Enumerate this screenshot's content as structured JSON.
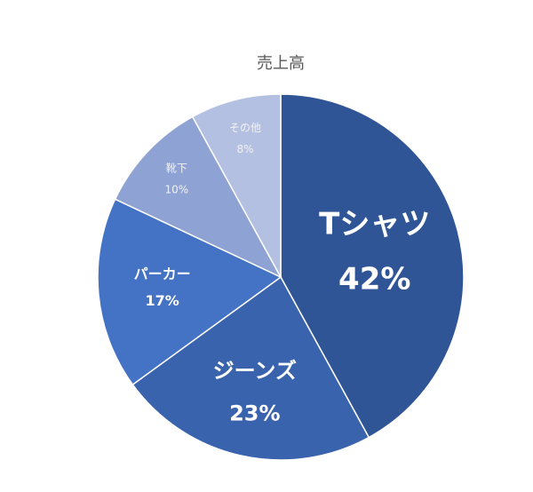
{
  "chart_data": {
    "type": "pie",
    "title": "売上高",
    "categories": [
      "Tシャツ",
      "ジーンズ",
      "パーカー",
      "靴下",
      "その他"
    ],
    "values": [
      42,
      23,
      17,
      10,
      8
    ],
    "value_labels": [
      "42%",
      "23%",
      "17%",
      "10%",
      "8%"
    ],
    "colors": [
      "#2f5597",
      "#3a63ad",
      "#4472c4",
      "#8fa2d4",
      "#b4c0e2"
    ]
  }
}
